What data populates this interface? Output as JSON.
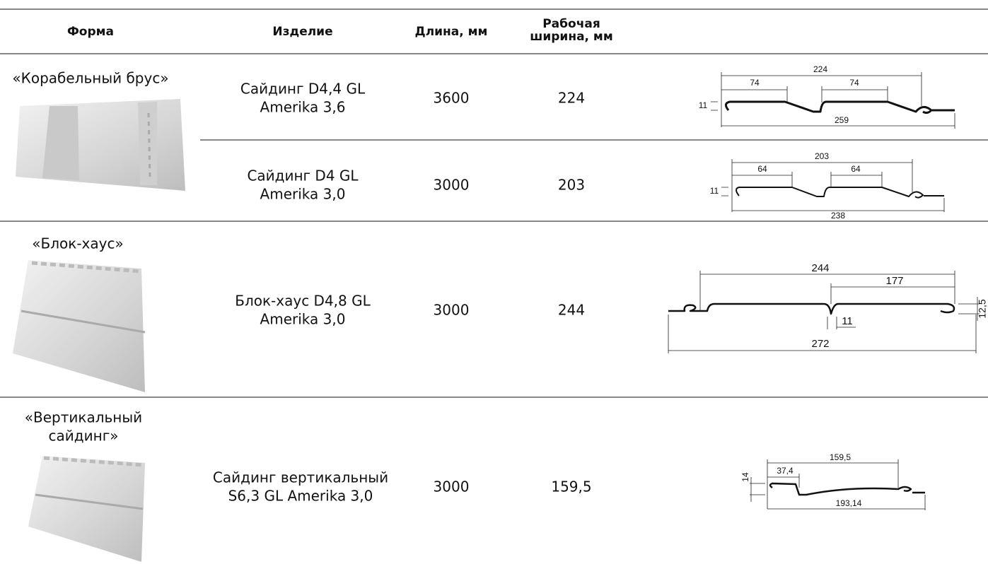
{
  "table": {
    "header": {
      "form": "Форма",
      "product": "Изделие",
      "length": "Длина, мм",
      "width": [
        "Рабочая",
        "ширина, мм"
      ]
    },
    "groups": [
      {
        "form": [
          "«Корабельный брус»"
        ],
        "products": [
          {
            "name": [
              "Сайдинг D4,4 GL",
              "Amerika 3,6"
            ],
            "length": "3600",
            "width": "224",
            "dims": [
              "224",
              "74",
              "74",
              "11",
              "259"
            ]
          },
          {
            "name": [
              "Сайдинг D4 GL",
              "Amerika 3,0"
            ],
            "length": "3000",
            "width": "203",
            "dims": [
              "203",
              "64",
              "64",
              "11",
              "238"
            ]
          }
        ]
      },
      {
        "form": [
          "«Блок-хаус»"
        ],
        "products": [
          {
            "name": [
              "Блок-хаус D4,8 GL",
              "Amerika 3,0"
            ],
            "length": "3000",
            "width": "244",
            "dims": [
              "244",
              "177",
              "12,5",
              "11",
              "272"
            ]
          }
        ]
      },
      {
        "form": [
          "«Вертикальный",
          "сайдинг»"
        ],
        "products": [
          {
            "name": [
              "Сайдинг вертикальный",
              "S6,3 GL Amerika 3,0"
            ],
            "length": "3000",
            "width": "159,5",
            "dims": [
              "159,5",
              "37,4",
              "14",
              "193,14"
            ]
          }
        ]
      }
    ]
  }
}
